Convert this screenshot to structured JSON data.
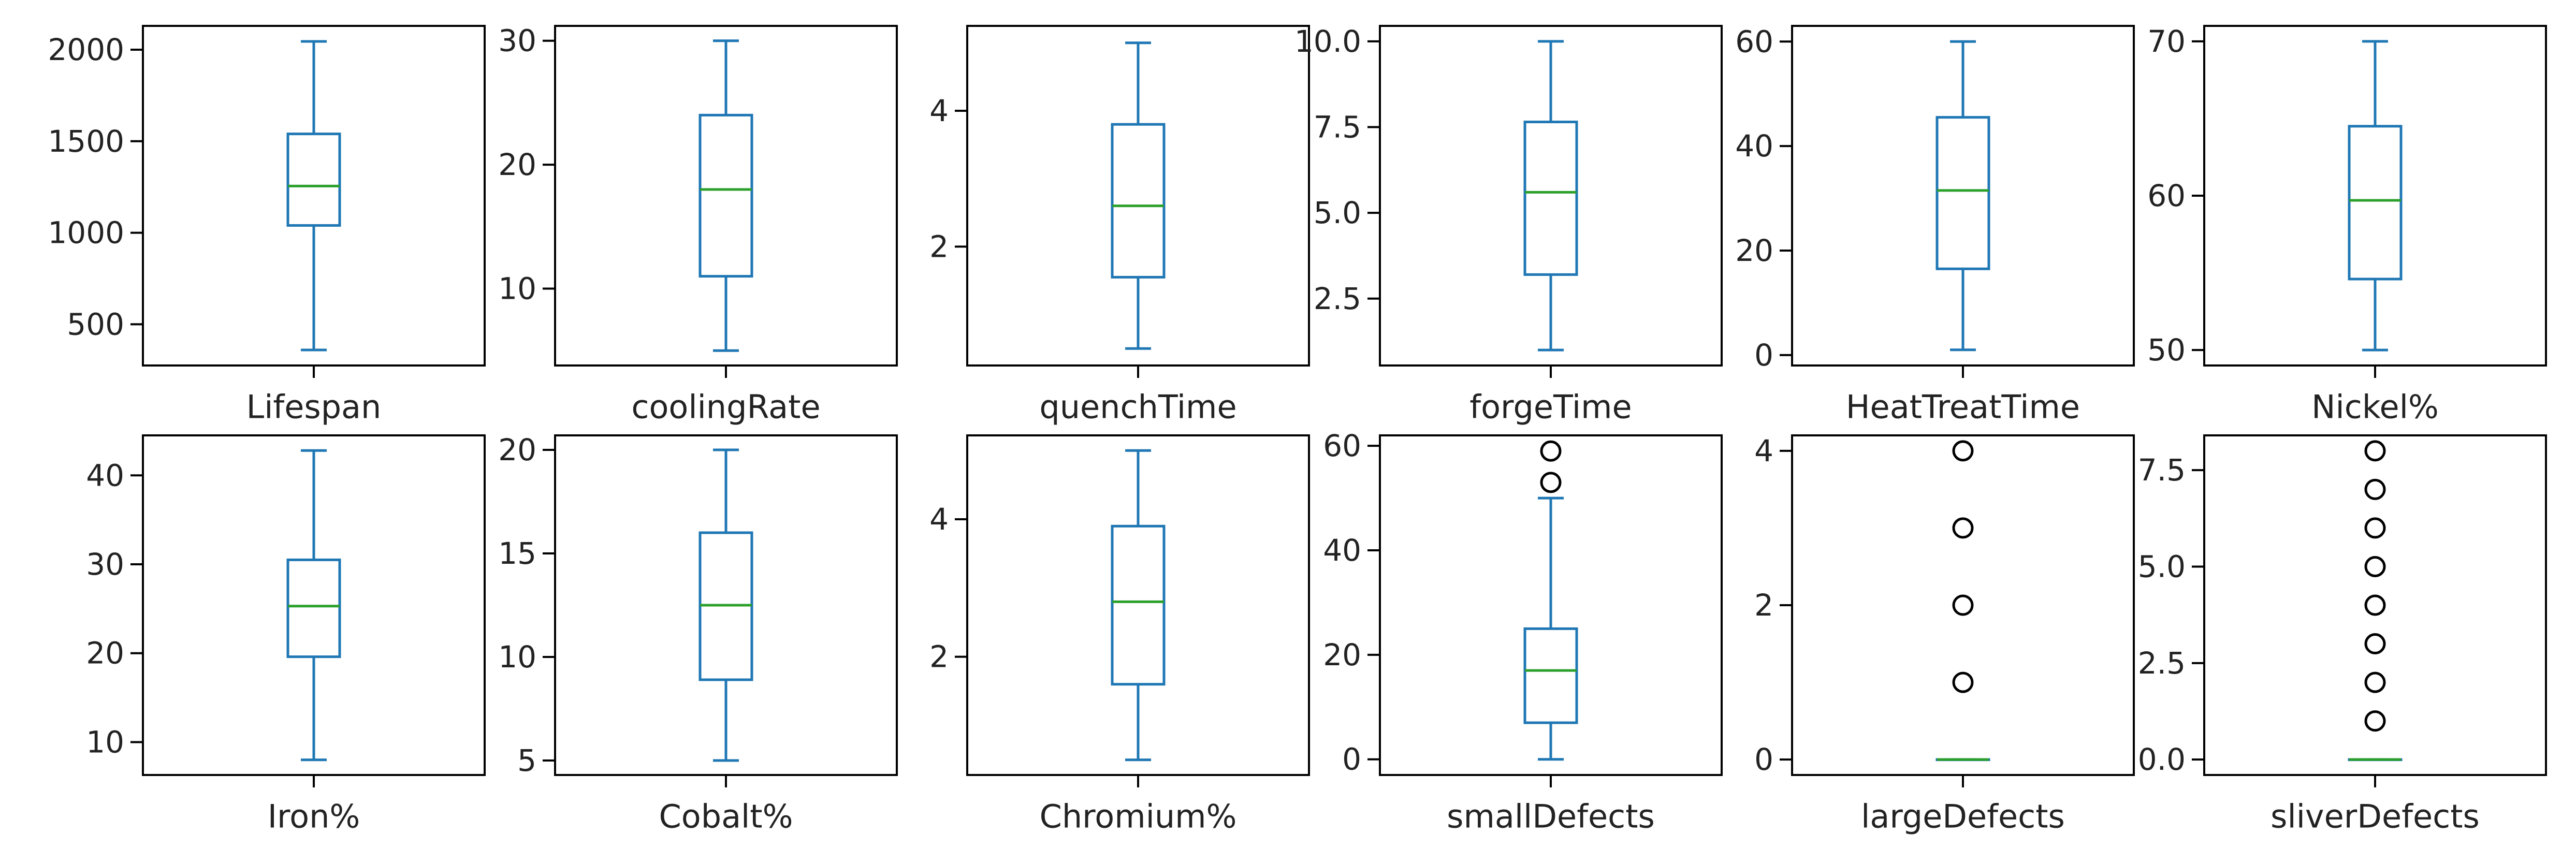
{
  "chart_data": [
    {
      "type": "box",
      "xlabel": "Lifespan",
      "ticks": [
        500,
        1000,
        1500,
        2000
      ],
      "ylim": [
        275,
        2130
      ],
      "box": {
        "whislo": 360,
        "q1": 1040,
        "med": 1255,
        "q3": 1540,
        "whishi": 2045
      },
      "outliers": []
    },
    {
      "type": "box",
      "xlabel": "coolingRate",
      "ticks": [
        10,
        20,
        30
      ],
      "ylim": [
        3.8,
        31.2
      ],
      "box": {
        "whislo": 5,
        "q1": 11,
        "med": 18,
        "q3": 24,
        "whishi": 30
      },
      "outliers": []
    },
    {
      "type": "box",
      "xlabel": "quenchTime",
      "ticks": [
        2,
        4
      ],
      "ylim": [
        0.25,
        5.25
      ],
      "box": {
        "whislo": 0.5,
        "q1": 1.55,
        "med": 2.6,
        "q3": 3.8,
        "whishi": 5.0
      },
      "outliers": []
    },
    {
      "type": "box",
      "xlabel": "forgeTime",
      "ticks": [
        "2.5",
        "5.0",
        "7.5",
        "10.0"
      ],
      "ylim": [
        0.55,
        10.45
      ],
      "box": {
        "whislo": 1,
        "q1": 3.2,
        "med": 5.6,
        "q3": 7.65,
        "whishi": 10
      },
      "outliers": []
    },
    {
      "type": "box",
      "xlabel": "HeatTreatTime",
      "ticks": [
        0,
        20,
        40,
        60
      ],
      "ylim": [
        -2,
        63
      ],
      "box": {
        "whislo": 1,
        "q1": 16.5,
        "med": 31.5,
        "q3": 45.5,
        "whishi": 60
      },
      "outliers": []
    },
    {
      "type": "box",
      "xlabel": "Nickel%",
      "ticks": [
        50,
        60,
        70
      ],
      "ylim": [
        49,
        71
      ],
      "box": {
        "whislo": 50,
        "q1": 54.6,
        "med": 59.7,
        "q3": 64.5,
        "whishi": 70
      },
      "outliers": []
    },
    {
      "type": "box",
      "xlabel": "Iron%",
      "ticks": [
        10,
        20,
        30,
        40
      ],
      "ylim": [
        6.3,
        44.5
      ],
      "box": {
        "whislo": 8,
        "q1": 19.6,
        "med": 25.3,
        "q3": 30.5,
        "whishi": 42.8
      },
      "outliers": []
    },
    {
      "type": "box",
      "xlabel": "Cobalt%",
      "ticks": [
        5,
        10,
        15,
        20
      ],
      "ylim": [
        4.3,
        20.7
      ],
      "box": {
        "whislo": 5,
        "q1": 8.9,
        "med": 12.5,
        "q3": 16,
        "whishi": 20
      },
      "outliers": []
    },
    {
      "type": "box",
      "xlabel": "Chromium%",
      "ticks": [
        2,
        4
      ],
      "ylim": [
        0.28,
        5.22
      ],
      "box": {
        "whislo": 0.5,
        "q1": 1.6,
        "med": 2.8,
        "q3": 3.9,
        "whishi": 5
      },
      "outliers": []
    },
    {
      "type": "box",
      "xlabel": "smallDefects",
      "ticks": [
        0,
        20,
        40,
        60
      ],
      "ylim": [
        -3,
        62
      ],
      "box": {
        "whislo": 0,
        "q1": 7,
        "med": 17,
        "q3": 25,
        "whishi": 50
      },
      "outliers": [
        53,
        59
      ]
    },
    {
      "type": "box",
      "xlabel": "largeDefects",
      "ticks": [
        0,
        2,
        4
      ],
      "ylim": [
        -0.2,
        4.2
      ],
      "box": {
        "whislo": 0,
        "q1": 0,
        "med": 0,
        "q3": 0,
        "whishi": 0
      },
      "outliers": [
        1,
        2,
        3,
        4
      ]
    },
    {
      "type": "box",
      "xlabel": "sliverDefects",
      "ticks": [
        "0.0",
        "2.5",
        "5.0",
        "7.5"
      ],
      "ylim": [
        -0.4,
        8.4
      ],
      "box": {
        "whislo": 0,
        "q1": 0,
        "med": 0,
        "q3": 0,
        "whishi": 0
      },
      "outliers": [
        1,
        2,
        3,
        4,
        5,
        6,
        7,
        8
      ]
    }
  ],
  "colors": {
    "box": "#1f77b4",
    "median": "#2ca02c",
    "axis": "#000000",
    "outlier": "#000000"
  }
}
